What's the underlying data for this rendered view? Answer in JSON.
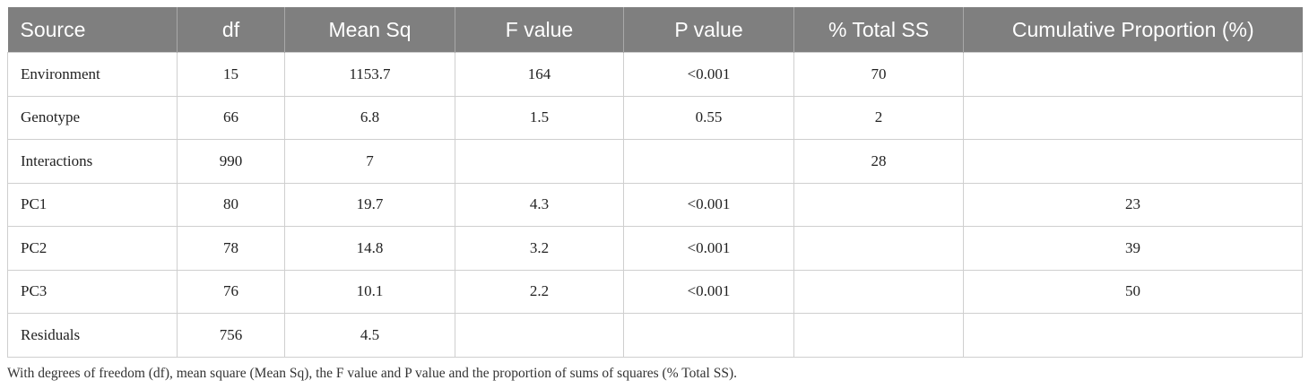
{
  "table": {
    "header": [
      "Source",
      "df",
      "Mean Sq",
      "F value",
      "P value",
      "% Total SS",
      "Cumulative Proportion (%)"
    ],
    "rows": [
      [
        "Environment",
        15,
        1153.7,
        164,
        "<0.001",
        70,
        null
      ],
      [
        "Genotype",
        66,
        6.8,
        1.5,
        0.55,
        2,
        null
      ],
      [
        "Interactions",
        990,
        7,
        null,
        null,
        28,
        null
      ],
      [
        "PC1",
        80,
        19.7,
        4.3,
        "<0.001",
        null,
        23
      ],
      [
        "PC2",
        78,
        14.8,
        3.2,
        "<0.001",
        null,
        39
      ],
      [
        "PC3",
        76,
        10.1,
        2.2,
        "<0.001",
        null,
        50
      ],
      [
        "Residuals",
        756,
        4.5,
        null,
        null,
        null,
        null
      ]
    ]
  },
  "caption": "With degrees of freedom (df), mean square (Mean Sq), the F value and P value and the proportion of sums of squares (% Total SS)."
}
